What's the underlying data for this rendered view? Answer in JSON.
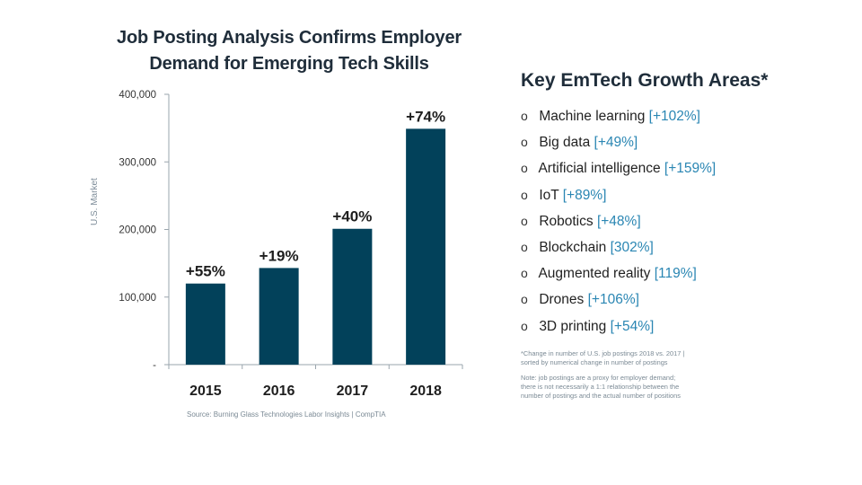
{
  "chart_data": {
    "type": "bar",
    "title": "Job Posting Analysis Confirms Employer Demand for Emerging Tech Skills",
    "categories": [
      "2015",
      "2016",
      "2017",
      "2018"
    ],
    "values": [
      120000,
      143000,
      201000,
      349000
    ],
    "data_labels": [
      "+55%",
      "+19%",
      "+40%",
      "+74%"
    ],
    "ylabel": "U.S. Market",
    "xlabel": "",
    "ylim": [
      0,
      400000
    ],
    "yticks": [
      0,
      100000,
      200000,
      300000,
      400000
    ],
    "ytick_labels": [
      "-",
      "100,000",
      "200,000",
      "300,000",
      "400,000"
    ],
    "bar_color": "#02415a",
    "grid": false,
    "legend": "none"
  },
  "source": "Source:  Burning Glass Technologies  Labor Insights | CompTIA",
  "growth_areas": {
    "title": "Key EmTech Growth Areas*",
    "bullet": "o",
    "items": [
      {
        "name": "Machine learning",
        "change": "[+102%]"
      },
      {
        "name": "Big data",
        "change": "[+49%]"
      },
      {
        "name": "Artificial intelligence",
        "change": "[+159%]"
      },
      {
        "name": "IoT",
        "change": "[+89%]"
      },
      {
        "name": "Robotics",
        "change": "[+48%]"
      },
      {
        "name": "Blockchain",
        "change": "[302%]"
      },
      {
        "name": "Augmented reality",
        "change": "[119%]"
      },
      {
        "name": "Drones",
        "change": "[+106%]"
      },
      {
        "name": "3D printing",
        "change": "[+54%]"
      }
    ]
  },
  "notes": {
    "change_line1": "*Change in number of U.S. job postings 2018 vs. 2017 |",
    "change_line2": "sorted by numerical change in number of postings",
    "proxy_line1": "Note: job postings are a proxy for employer demand;",
    "proxy_line2": "there is not necessarily a 1:1 relationship between  the",
    "proxy_line3": "number of postings and the actual number of positions"
  },
  "colors": {
    "accent": "#2a86b3",
    "bar": "#02415a",
    "title": "#1f2d3a"
  }
}
